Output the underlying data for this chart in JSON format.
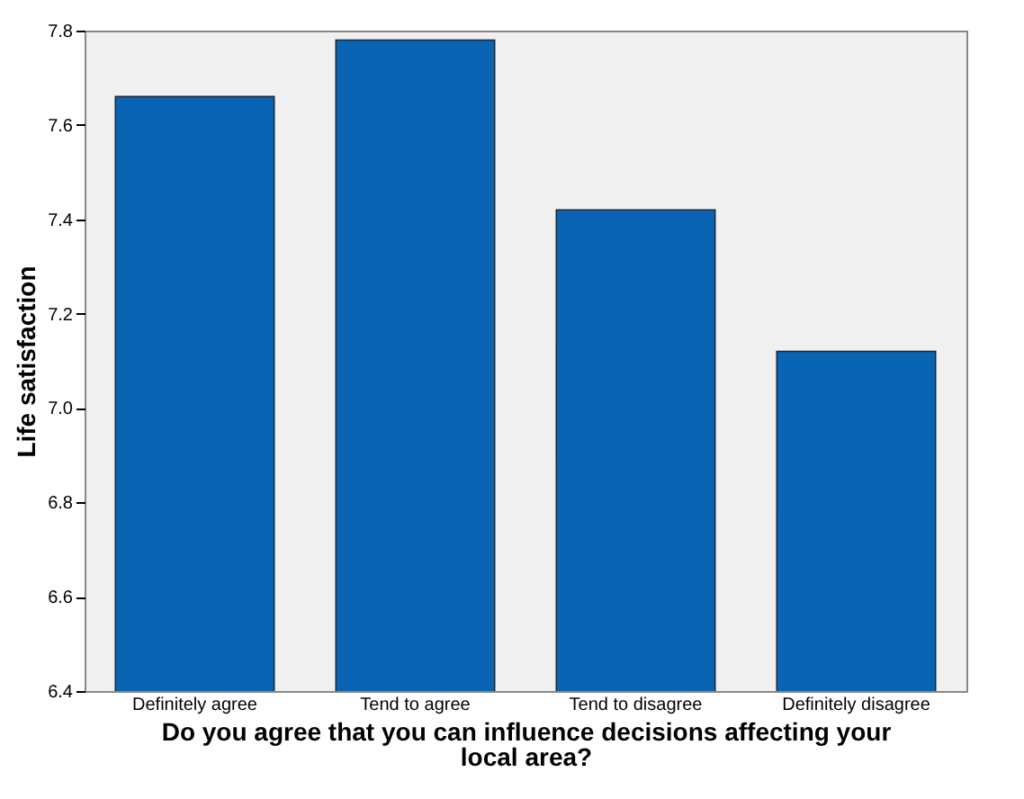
{
  "chart_data": {
    "type": "bar",
    "xlabel": "Do you agree that you can influence decisions affecting your local area?",
    "ylabel": "Life satisfaction",
    "categories": [
      "Definitely agree",
      "Tend to agree",
      "Tend to disagree",
      "Definitely disagree"
    ],
    "values": [
      7.66,
      7.78,
      7.42,
      7.12
    ],
    "color": "#0a64b4",
    "ylim": [
      6.4,
      7.8
    ],
    "yticks": [
      6.4,
      6.6,
      6.8,
      {
        "value": 7,
        "label": "7.0"
      },
      7.2,
      7.4,
      7.6,
      7.8
    ],
    "grid": false
  }
}
